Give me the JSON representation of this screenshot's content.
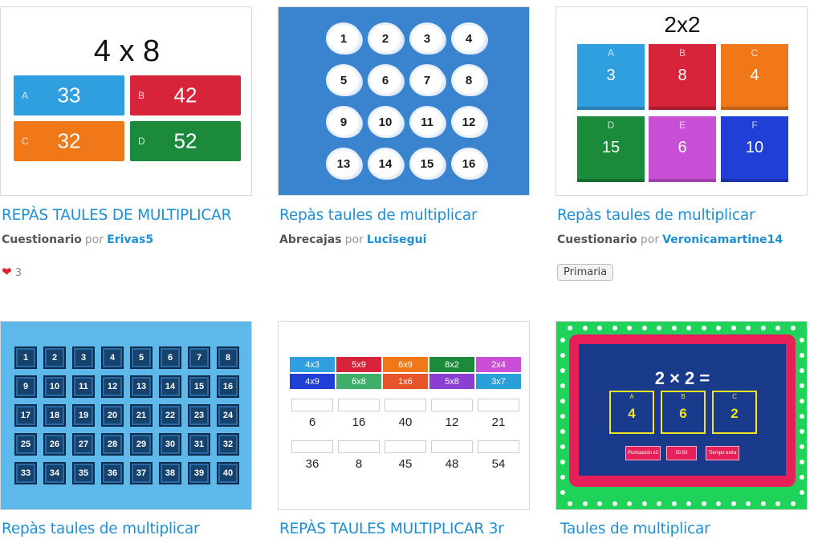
{
  "cards": [
    {
      "title": "REPÀS TAULES DE MULTIPLICAR",
      "type": "Cuestionario",
      "por": "por",
      "author": "Erivas5",
      "likes": "3",
      "thumb": {
        "question": "4 x 8",
        "answers": [
          {
            "letter": "A",
            "value": "33",
            "color": "#2f9fe0"
          },
          {
            "letter": "B",
            "value": "42",
            "color": "#d7243b"
          },
          {
            "letter": "C",
            "value": "32",
            "color": "#f07819"
          },
          {
            "letter": "D",
            "value": "52",
            "color": "#1b8a3a"
          }
        ]
      }
    },
    {
      "title": "Repàs taules de multiplicar",
      "type": "Abrecajas",
      "por": "por",
      "author": "Lucisegui",
      "thumb": {
        "numbers": [
          "1",
          "2",
          "3",
          "4",
          "5",
          "6",
          "7",
          "8",
          "9",
          "10",
          "11",
          "12",
          "13",
          "14",
          "15",
          "16"
        ]
      }
    },
    {
      "title": "Repàs taules de multiplicar",
      "type": "Cuestionario",
      "por": "por",
      "author": "Veronicamartine14",
      "tag": "Primaria",
      "thumb": {
        "question": "2x2",
        "answers": [
          {
            "letter": "A",
            "value": "3",
            "color": "#2f9fe0"
          },
          {
            "letter": "B",
            "value": "8",
            "color": "#d7243b"
          },
          {
            "letter": "C",
            "value": "4",
            "color": "#f07819"
          },
          {
            "letter": "D",
            "value": "15",
            "color": "#1b8a3a"
          },
          {
            "letter": "E",
            "value": "6",
            "color": "#c94fd6"
          },
          {
            "letter": "F",
            "value": "10",
            "color": "#1f3fd6"
          }
        ]
      }
    },
    {
      "title": "Repàs taules de multiplicar",
      "thumb": {
        "numbers": [
          "1",
          "2",
          "3",
          "4",
          "5",
          "6",
          "7",
          "8",
          "9",
          "10",
          "11",
          "12",
          "13",
          "14",
          "15",
          "16",
          "17",
          "18",
          "19",
          "20",
          "21",
          "22",
          "23",
          "24",
          "25",
          "26",
          "27",
          "28",
          "29",
          "30",
          "31",
          "32",
          "33",
          "34",
          "35",
          "36",
          "37",
          "38",
          "39",
          "40"
        ]
      }
    },
    {
      "title": "REPÀS TAULES MULTIPLICAR 3r",
      "thumb": {
        "chips": [
          {
            "text": "4x3",
            "color": "#2f9fe0"
          },
          {
            "text": "5x9",
            "color": "#d7243b"
          },
          {
            "text": "6x9",
            "color": "#f07819"
          },
          {
            "text": "8x2",
            "color": "#1b8a3a"
          },
          {
            "text": "2x4",
            "color": "#c94fd6"
          },
          {
            "text": "4x9",
            "color": "#1f3fd6"
          },
          {
            "text": "6x8",
            "color": "#3fae6a"
          },
          {
            "text": "1x6",
            "color": "#e8542a"
          },
          {
            "text": "5x8",
            "color": "#8b3fd0"
          },
          {
            "text": "3x7",
            "color": "#2aa0d8"
          }
        ],
        "numbers": [
          "6",
          "16",
          "40",
          "12",
          "21",
          "36",
          "8",
          "45",
          "48",
          "54"
        ]
      }
    },
    {
      "title": "Taules de multiplicar",
      "thumb": {
        "question": "2 × 2 =",
        "answers": [
          {
            "letter": "A",
            "value": "4"
          },
          {
            "letter": "B",
            "value": "6"
          },
          {
            "letter": "C",
            "value": "2"
          }
        ],
        "buttons": [
          "Puntuación x2",
          "50:50",
          "Tiempo extra"
        ]
      }
    }
  ]
}
